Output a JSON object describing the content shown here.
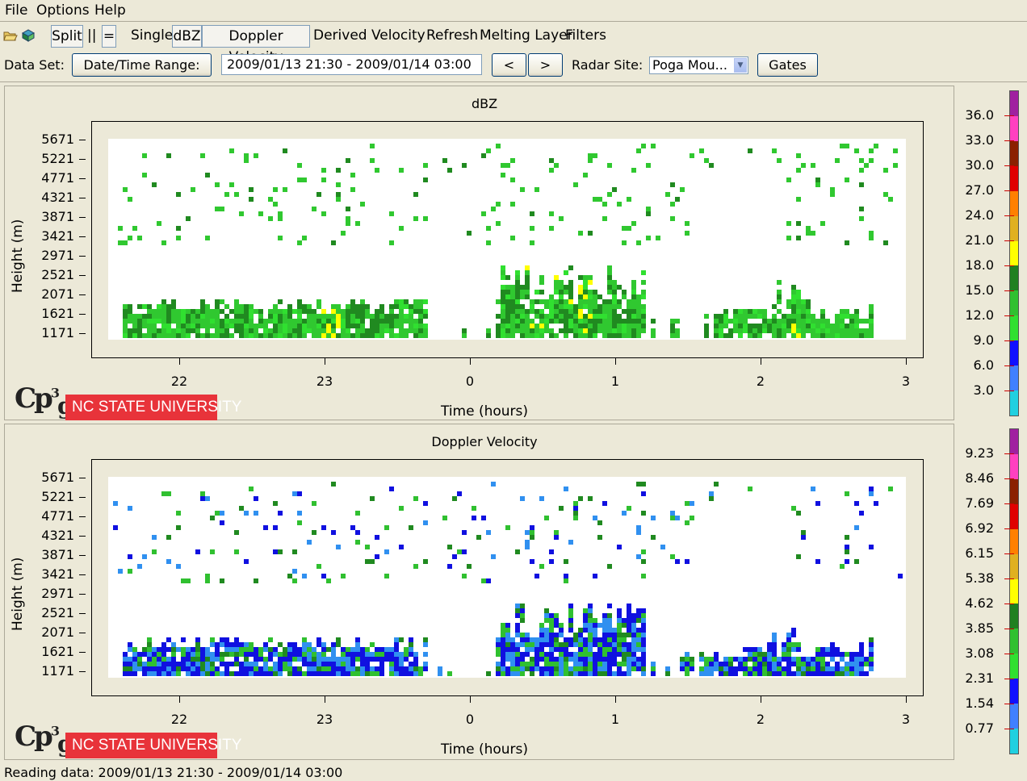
{
  "menu": [
    "File",
    "Options",
    "Help"
  ],
  "toolbar": {
    "split": "Split",
    "parallel": "||",
    "equal": "=",
    "single": "Single",
    "dbz": "dBZ",
    "doppler": "Doppler Velocity",
    "derived": "Derived Velocity",
    "refresh": "Refresh",
    "melting": "Melting Layer",
    "filters": "Filters"
  },
  "dataset": {
    "label": "Data Set:",
    "range_button": "Date/Time Range:",
    "range_value": "2009/01/13 21:30 - 2009/01/14 03:00",
    "prev": "<",
    "next": ">",
    "site_label": "Radar Site:",
    "site_value": "Poga Mou...",
    "gates": "Gates"
  },
  "plots": [
    {
      "title": "dBZ",
      "xlabel": "Time (hours)",
      "ylabel": "Height (m)",
      "yticks": [
        "5671",
        "5221",
        "4771",
        "4321",
        "3871",
        "3421",
        "2971",
        "2521",
        "2071",
        "1621",
        "1171"
      ],
      "xticks": [
        "22",
        "23",
        "0",
        "1",
        "2",
        "3"
      ],
      "legend": [
        "36.0",
        "33.0",
        "30.0",
        "27.0",
        "24.0",
        "21.0",
        "18.0",
        "15.0",
        "12.0",
        "9.0",
        "6.0",
        "3.0"
      ],
      "legend_colors": [
        "#a020a0",
        "#ff40c0",
        "#8b2000",
        "#e00000",
        "#ff8000",
        "#e0b020",
        "#ffff00",
        "#208020",
        "#30c030",
        "#30e030",
        "#1010ff",
        "#4080ff",
        "#20d0e0"
      ],
      "palette": [
        "#30c830",
        "#208a20",
        "#30e030",
        "#ffff00",
        "#e0c020"
      ]
    },
    {
      "title": "Doppler Velocity",
      "xlabel": "Time (hours)",
      "ylabel": "Height (m)",
      "yticks": [
        "5671",
        "5221",
        "4771",
        "4321",
        "3871",
        "3421",
        "2971",
        "2521",
        "2071",
        "1621",
        "1171"
      ],
      "xticks": [
        "22",
        "23",
        "0",
        "1",
        "2",
        "3"
      ],
      "legend": [
        "9.23",
        "8.46",
        "7.69",
        "6.92",
        "6.15",
        "5.38",
        "4.62",
        "3.85",
        "3.08",
        "2.31",
        "1.54",
        "0.77"
      ],
      "legend_colors": [
        "#a020a0",
        "#ff40c0",
        "#8b2000",
        "#e00000",
        "#ff8000",
        "#e0b020",
        "#ffff00",
        "#208020",
        "#30c030",
        "#30e030",
        "#1010ff",
        "#4080ff",
        "#20d0e0"
      ],
      "palette": [
        "#1010e0",
        "#3090f0",
        "#30c030",
        "#208a20",
        "#1010e0"
      ]
    }
  ],
  "logo": {
    "cp": "Cp",
    "sup": "3",
    "sub": "g",
    "university": "NC STATE UNIVERSITY"
  },
  "status": "Reading data: 2009/01/13 21:30 - 2009/01/14 03:00"
}
